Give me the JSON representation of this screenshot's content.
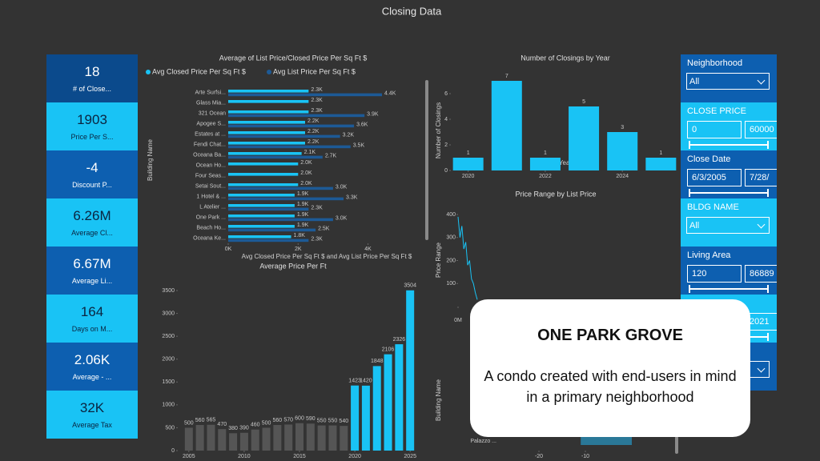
{
  "title": "Closing Data",
  "kpis": [
    {
      "value": "18",
      "label": "# of Close..."
    },
    {
      "value": "1903",
      "label": "Price Per S..."
    },
    {
      "value": "-4",
      "label": "Discount P..."
    },
    {
      "value": "6.26M",
      "label": "Average Cl..."
    },
    {
      "value": "6.67M",
      "label": "Average Li..."
    },
    {
      "value": "164",
      "label": "Days on M..."
    },
    {
      "value": "2.06K",
      "label": "Average - ..."
    },
    {
      "value": "32K",
      "label": "Average Tax"
    }
  ],
  "slicers": [
    {
      "title": "Neighborhood",
      "dropdown": "All"
    },
    {
      "title": "CLOSE PRICE",
      "inputs": [
        "0",
        "60000"
      ]
    },
    {
      "title": "Close Date",
      "inputs": [
        "6/3/2005",
        "7/28/"
      ]
    },
    {
      "title": "BLDG NAME",
      "dropdown": "All"
    },
    {
      "title": "Living Area",
      "inputs": [
        "120",
        "86889"
      ]
    },
    {
      "inputs": [
        "2021"
      ]
    }
  ],
  "card": {
    "title": "ONE PARK GROVE",
    "text": "A condo created with end-users in mind in a primary neighborhood"
  },
  "chart_data": [
    {
      "type": "hbar",
      "title": "Average of List Price/Closed Price Per Sq Ft $",
      "categories": [
        "Arte Surfsi...",
        "Glass Mia...",
        "321 Ocean",
        "Apogee S...",
        "Estates at ...",
        "Fendi Chat...",
        "Oceana Ba...",
        "Ocean Ho...",
        "Four Seas...",
        "Setai Sout...",
        "1 Hotel & ...",
        "L Atelier ...",
        "One Park ...",
        "Beach Ho...",
        "Oceana Ke..."
      ],
      "series": [
        {
          "name": "Avg Closed Price Per Sq Ft $",
          "color": "#19c3f5",
          "values": [
            2300,
            2300,
            2300,
            2200,
            2200,
            2200,
            2100,
            2000,
            2000,
            2000,
            1900,
            1900,
            1900,
            1900,
            1800
          ],
          "value_labels": [
            "2.3K",
            "2.3K",
            "2.3K",
            "2.2K",
            "2.2K",
            "2.2K",
            "2.1K",
            "2.0K",
            "2.0K",
            "2.0K",
            "1.9K",
            "1.9K",
            "1.9K",
            "1.9K",
            "1.8K"
          ]
        },
        {
          "name": "Avg List Price Per Sq Ft $",
          "color": "#1d5a96",
          "values": [
            4400,
            null,
            3900,
            3600,
            3200,
            3500,
            2700,
            null,
            null,
            3000,
            3300,
            2300,
            3000,
            2500,
            2300
          ],
          "value_labels": [
            "4.4K",
            null,
            "3.9K",
            "3.6K",
            "3.2K",
            "3.5K",
            "2.7K",
            null,
            null,
            "3.0K",
            "3.3K",
            "2.3K",
            "3.0K",
            "2.5K",
            "2.3K"
          ]
        }
      ],
      "xlim": [
        0,
        4400
      ],
      "xticks": [
        {
          "value": 0,
          "label": "0K"
        },
        {
          "value": 2000,
          "label": "2K"
        },
        {
          "value": 4000,
          "label": "4K"
        }
      ],
      "xlabel": "Avg Closed Price Per Sq Ft $ and Avg List Price Per Sq Ft $",
      "ylabel": "Building Name"
    },
    {
      "type": "bar",
      "title": "Number of Closings by Year",
      "x": [
        2020,
        2021,
        2022,
        2023,
        2024,
        2025
      ],
      "values": [
        1,
        7,
        1,
        5,
        3,
        1
      ],
      "color": "#19c3f5",
      "xlim": [
        2019.55,
        2025.45
      ],
      "xticks": [
        2020,
        2022,
        2024
      ],
      "ylim": [
        0,
        7
      ],
      "yticks": [
        0,
        2,
        4,
        6
      ],
      "xlabel": "Year",
      "ylabel": "Number of Closings"
    },
    {
      "type": "bar",
      "title": "Average Price Per Ft",
      "series": [
        {
          "color": "#555555",
          "x": [
            2005,
            2006,
            2007,
            2008,
            2009,
            2010,
            2011,
            2012,
            2013,
            2014,
            2015,
            2016,
            2017,
            2018,
            2019
          ],
          "values": [
            500,
            560,
            565,
            470,
            380,
            390,
            460,
            500,
            560,
            570,
            600,
            590,
            550,
            550,
            540
          ]
        },
        {
          "color": "#19c3f5",
          "x": [
            2020,
            2021,
            2022,
            2023,
            2024,
            2025
          ],
          "values": [
            1423,
            1420,
            1848,
            2106,
            2326,
            3504
          ]
        }
      ],
      "xlim": [
        2004,
        2026
      ],
      "xticks": [
        2005,
        2010,
        2015,
        2020,
        2025
      ],
      "ylim": [
        0,
        3500
      ],
      "yticks": [
        0,
        500,
        1000,
        1500,
        2000,
        2500,
        3000,
        3500
      ]
    },
    {
      "type": "line",
      "title": "Price Range by List Price",
      "x": [
        0,
        1,
        2,
        3,
        4,
        5,
        6,
        7,
        8,
        9,
        10
      ],
      "values": [
        390,
        300,
        350,
        250,
        280,
        180,
        200,
        120,
        100,
        60,
        30
      ],
      "color": "#19c3f5",
      "xlim": [
        0,
        20
      ],
      "xticks": [
        {
          "value": 0,
          "label": "0M"
        }
      ],
      "ylim": [
        0,
        400
      ],
      "yticks": [
        100,
        200,
        300,
        400
      ],
      "ylabel": "Price Range"
    },
    {
      "type": "hbar",
      "categories": [
        "Palazzo ..."
      ],
      "series": [
        {
          "color": "#2a7898",
          "values": [
            -11
          ]
        }
      ],
      "xlim": [
        -20,
        0
      ],
      "xticks": [
        -20,
        -10
      ],
      "ylabel": "Building Name"
    }
  ]
}
